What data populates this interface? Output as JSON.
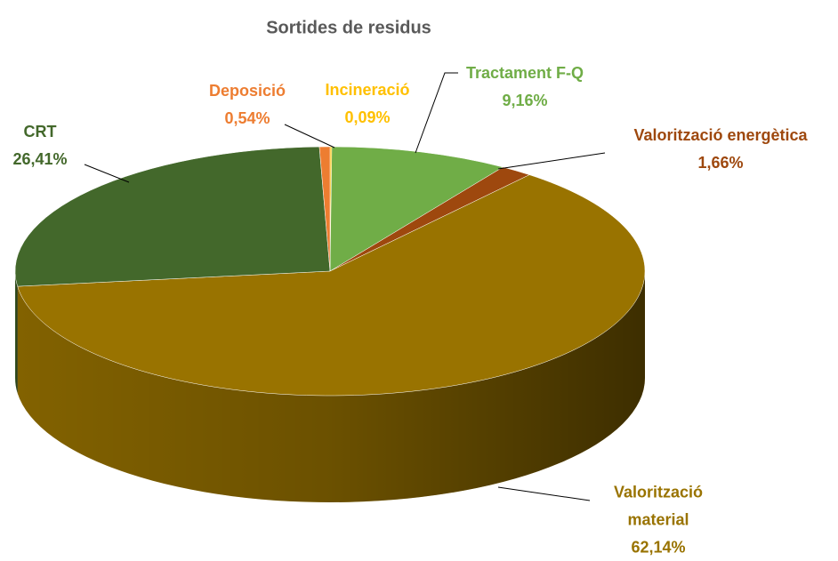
{
  "chart_data": {
    "type": "pie",
    "title": "Sortides de residus",
    "categories": [
      "Incineració",
      "Tractament F-Q",
      "Valorització energètica",
      "Valorització material",
      "CRT",
      "Deposició"
    ],
    "values": [
      0.09,
      9.16,
      1.66,
      62.14,
      26.41,
      0.54
    ],
    "value_labels": [
      "0,09%",
      "9,16%",
      "1,66%",
      "62,14%",
      "26,41%",
      "0,54%"
    ],
    "colors": [
      "#ffc000",
      "#70ad47",
      "#9e480e",
      "#997300",
      "#43682b",
      "#ed7d31"
    ]
  }
}
